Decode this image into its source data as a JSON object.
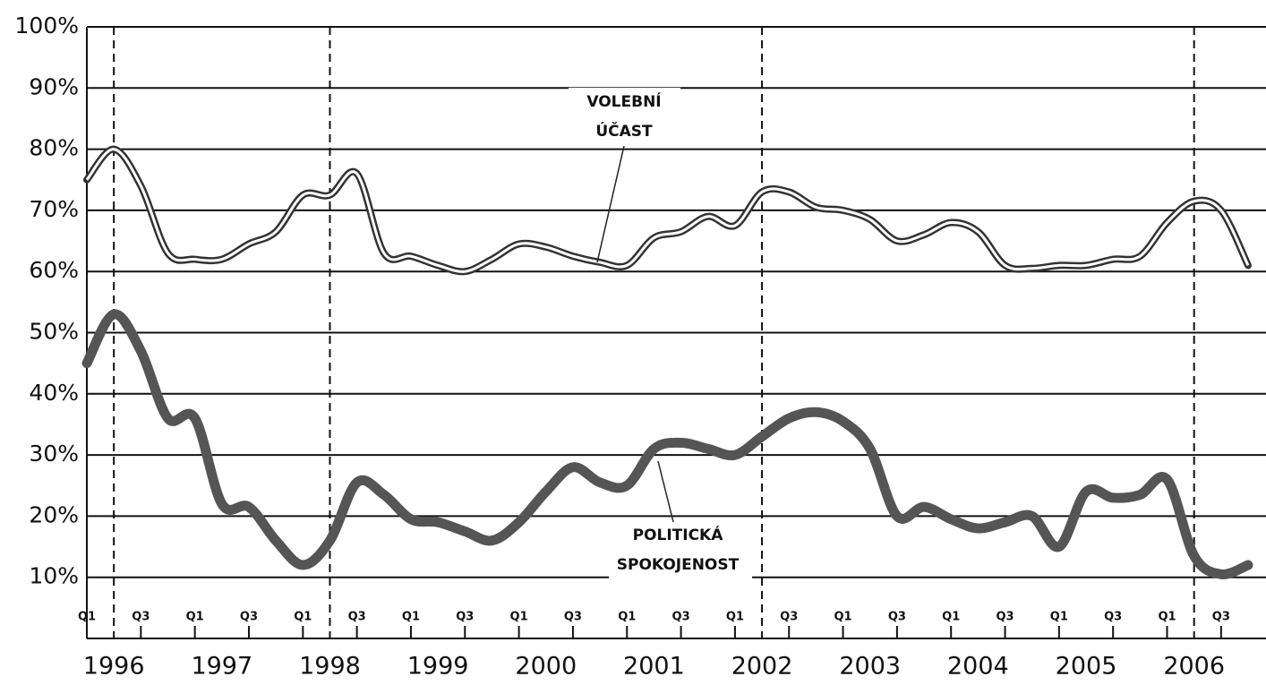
{
  "chart_data": {
    "type": "line",
    "categories": [
      "Q1",
      null,
      "Q3",
      null,
      "Q1",
      null,
      "Q3",
      null,
      "Q1",
      null,
      "Q3",
      null,
      "Q1",
      null,
      "Q3",
      null,
      "Q1",
      null,
      "Q3",
      null,
      "Q1",
      null,
      "Q3",
      null,
      "Q1",
      null,
      "Q3",
      null,
      "Q1",
      null,
      "Q3",
      null,
      "Q1",
      null,
      "Q3",
      null,
      "Q1",
      null,
      "Q3",
      null,
      "Q1",
      null,
      "Q3",
      null
    ],
    "years": [
      1996,
      1997,
      1998,
      1999,
      2000,
      2001,
      2002,
      2003,
      2004,
      2005,
      2006
    ],
    "election_years": [
      1996,
      1998,
      2002,
      2006
    ],
    "series": [
      {
        "name": "VOLEBNÍ ÚČAST",
        "color": "#333333",
        "values": [
          75,
          80,
          74,
          63,
          62,
          62,
          64.5,
          66.5,
          72.5,
          72.5,
          76,
          63,
          62.5,
          61,
          60,
          62,
          64.5,
          64,
          62.5,
          61.5,
          61,
          65.5,
          66.5,
          69,
          67.5,
          73,
          73,
          70.5,
          70,
          68.5,
          65,
          66,
          68,
          66.5,
          61,
          60.5,
          61,
          61,
          62,
          62.5,
          68,
          71.5,
          70,
          61
        ]
      },
      {
        "name": "POLITICKÁ SPOKOJENOST",
        "color": "#555555",
        "values": [
          45,
          53,
          47,
          36,
          36,
          22,
          21.5,
          16,
          12,
          16,
          25.5,
          23.5,
          19.5,
          19,
          17.5,
          16,
          19,
          24,
          28,
          25.5,
          25,
          31,
          32,
          31,
          30,
          33,
          36,
          37,
          35.5,
          31,
          20,
          21.5,
          19.5,
          18,
          19,
          20,
          15,
          24,
          23,
          23.5,
          26,
          13.5,
          10.5,
          12
        ]
      }
    ],
    "ylim": [
      0,
      100
    ],
    "yticks": [
      {
        "value": 10,
        "label": "10%"
      },
      {
        "value": 20,
        "label": "20%"
      },
      {
        "value": 30,
        "label": "30%"
      },
      {
        "value": 40,
        "label": "40%"
      },
      {
        "value": 50,
        "label": "50%"
      },
      {
        "value": 60,
        "label": "60%"
      },
      {
        "value": 70,
        "label": "70%"
      },
      {
        "value": 80,
        "label": "80%"
      },
      {
        "value": 90,
        "label": "90%"
      },
      {
        "value": 100,
        "label": "100%"
      }
    ],
    "grid": true
  }
}
